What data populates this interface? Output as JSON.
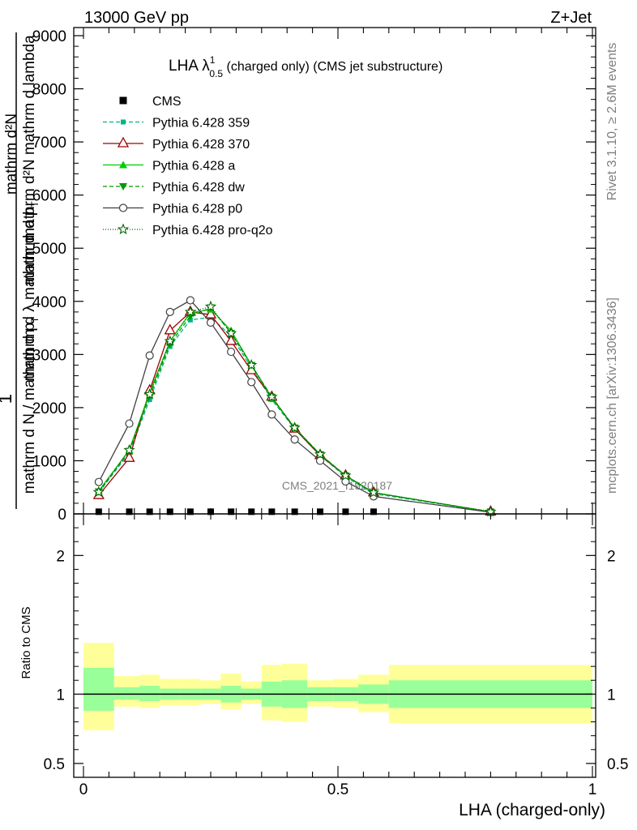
{
  "header": {
    "energy": "13000 GeV pp",
    "process": "Z+Jet"
  },
  "side": {
    "rivet": "Rivet 3.1.10, ≥ 2.6M events",
    "mcplots": "mcplots.cern.ch [arXiv:1306.3436]"
  },
  "watermark": "CMS_2021_I1920187",
  "chart_data": [
    {
      "type": "line",
      "title_main": "LHA λ",
      "title_sup": "1",
      "title_sub": "0.5",
      "title_rest": " (charged only) (CMS jet substructure)",
      "ylabel_top": "mathrm d²N",
      "ylabel_top2": "mathrm d²N  mathrm d lambda",
      "ylabel_mid": "mathrm d p",
      "ylabel_mid_sub": "T",
      "ylabel_mid2": "mathrm d p",
      "ylabel_mid2_sub": "T",
      "ylabel_mid3": "mathrm d λ mathrm d",
      "ylabel_one": "1",
      "ylabel_bottom": "mathrm d N / mathrm d p",
      "ylabel_bottom_sub": "T",
      "xlim": [
        0,
        1
      ],
      "ylim": [
        0,
        9000
      ],
      "yticks": [
        {
          "v": 0,
          "label": "0"
        },
        {
          "v": 1000,
          "label": "1000"
        },
        {
          "v": 2000,
          "label": "2000"
        },
        {
          "v": 3000,
          "label": "3000"
        },
        {
          "v": 4000,
          "label": "4000"
        },
        {
          "v": 5000,
          "label": "5000"
        },
        {
          "v": 6000,
          "label": "6000"
        },
        {
          "v": 7000,
          "label": "7000"
        },
        {
          "v": 8000,
          "label": "8000"
        },
        {
          "v": 9000,
          "label": "9000"
        }
      ],
      "x": [
        0.03,
        0.09,
        0.13,
        0.17,
        0.21,
        0.25,
        0.29,
        0.33,
        0.37,
        0.415,
        0.465,
        0.515,
        0.57,
        0.8
      ],
      "cms": {
        "name": "CMS",
        "x": [
          0.03,
          0.09,
          0.13,
          0.17,
          0.21,
          0.25,
          0.29,
          0.33,
          0.37,
          0.415,
          0.465,
          0.515,
          0.57
        ],
        "values": [
          10,
          10,
          10,
          10,
          10,
          10,
          10,
          10,
          10,
          10,
          10,
          10,
          10
        ]
      },
      "series": [
        {
          "name": "Pythia 6.428 359",
          "color": "#00b386",
          "dash": "5,3",
          "marker": "square-small",
          "values": [
            400,
            1150,
            2150,
            3150,
            3650,
            3700,
            3350,
            2750,
            2150,
            1600,
            1100,
            700,
            380,
            40
          ]
        },
        {
          "name": "Pythia 6.428 370",
          "color": "#a00000",
          "dash": "",
          "marker": "triangle-open",
          "values": [
            350,
            1050,
            2320,
            3450,
            3800,
            3750,
            3250,
            2700,
            2200,
            1600,
            1100,
            720,
            400,
            40
          ]
        },
        {
          "name": "Pythia 6.428 a",
          "color": "#00cc00",
          "dash": "",
          "marker": "triangle",
          "values": [
            430,
            1200,
            2280,
            3250,
            3780,
            3850,
            3450,
            2800,
            2180,
            1620,
            1120,
            720,
            400,
            40
          ]
        },
        {
          "name": "Pythia 6.428 dw",
          "color": "#009900",
          "dash": "5,3",
          "marker": "triangle-down",
          "values": [
            420,
            1180,
            2220,
            3200,
            3720,
            3880,
            3400,
            2800,
            2200,
            1620,
            1120,
            720,
            400,
            40
          ]
        },
        {
          "name": "Pythia 6.428 p0",
          "color": "#404040",
          "dash": "",
          "marker": "circle-open",
          "values": [
            600,
            1700,
            2980,
            3800,
            4020,
            3600,
            3050,
            2480,
            1870,
            1400,
            1000,
            610,
            330,
            30
          ]
        },
        {
          "name": "Pythia 6.428 pro-q2o",
          "color": "#006600",
          "dash": "1,2",
          "marker": "star",
          "values": [
            410,
            1200,
            2250,
            3250,
            3800,
            3900,
            3400,
            2800,
            2200,
            1620,
            1120,
            720,
            400,
            40
          ]
        }
      ]
    },
    {
      "type": "area",
      "ylabel": "Ratio to CMS",
      "xlabel": "LHA (charged-only)",
      "xlim": [
        0,
        1
      ],
      "ylim": [
        0.4,
        2.3
      ],
      "yticks": [
        {
          "v": 0.5,
          "label": "0.5"
        },
        {
          "v": 1,
          "label": "1"
        },
        {
          "v": 2,
          "label": "2"
        }
      ],
      "xticks": [
        {
          "v": 0,
          "label": "0"
        },
        {
          "v": 0.5,
          "label": "0.5"
        },
        {
          "v": 1,
          "label": "1"
        }
      ],
      "reference": 1,
      "band_colors": {
        "inner": "#99ff99",
        "outer": "#ffff99"
      },
      "bins": [
        {
          "x0": 0.0,
          "x1": 0.06,
          "in_lo": 0.88,
          "in_hi": 1.19,
          "out_lo": 0.74,
          "out_hi": 1.37
        },
        {
          "x0": 0.06,
          "x1": 0.11,
          "in_lo": 0.96,
          "in_hi": 1.05,
          "out_lo": 0.91,
          "out_hi": 1.13
        },
        {
          "x0": 0.11,
          "x1": 0.15,
          "in_lo": 0.95,
          "in_hi": 1.06,
          "out_lo": 0.9,
          "out_hi": 1.14
        },
        {
          "x0": 0.15,
          "x1": 0.19,
          "in_lo": 0.96,
          "in_hi": 1.04,
          "out_lo": 0.92,
          "out_hi": 1.11
        },
        {
          "x0": 0.19,
          "x1": 0.23,
          "in_lo": 0.96,
          "in_hi": 1.04,
          "out_lo": 0.92,
          "out_hi": 1.11
        },
        {
          "x0": 0.23,
          "x1": 0.27,
          "in_lo": 0.96,
          "in_hi": 1.04,
          "out_lo": 0.93,
          "out_hi": 1.1
        },
        {
          "x0": 0.27,
          "x1": 0.31,
          "in_lo": 0.94,
          "in_hi": 1.06,
          "out_lo": 0.89,
          "out_hi": 1.15
        },
        {
          "x0": 0.31,
          "x1": 0.35,
          "in_lo": 0.96,
          "in_hi": 1.04,
          "out_lo": 0.93,
          "out_hi": 1.09
        },
        {
          "x0": 0.35,
          "x1": 0.39,
          "in_lo": 0.91,
          "in_hi": 1.09,
          "out_lo": 0.81,
          "out_hi": 1.21
        },
        {
          "x0": 0.39,
          "x1": 0.44,
          "in_lo": 0.9,
          "in_hi": 1.1,
          "out_lo": 0.8,
          "out_hi": 1.22
        },
        {
          "x0": 0.44,
          "x1": 0.49,
          "in_lo": 0.95,
          "in_hi": 1.05,
          "out_lo": 0.91,
          "out_hi": 1.1
        },
        {
          "x0": 0.49,
          "x1": 0.54,
          "in_lo": 0.95,
          "in_hi": 1.05,
          "out_lo": 0.9,
          "out_hi": 1.11
        },
        {
          "x0": 0.54,
          "x1": 0.6,
          "in_lo": 0.93,
          "in_hi": 1.07,
          "out_lo": 0.87,
          "out_hi": 1.14
        },
        {
          "x0": 0.6,
          "x1": 1.0,
          "in_lo": 0.9,
          "in_hi": 1.1,
          "out_lo": 0.79,
          "out_hi": 1.21
        }
      ]
    }
  ]
}
